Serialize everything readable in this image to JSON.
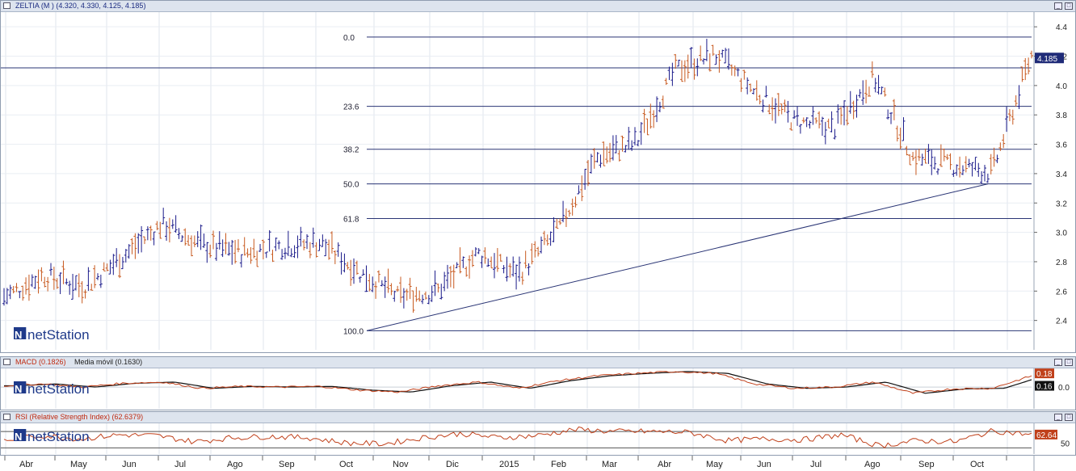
{
  "panes": {
    "price": {
      "symbol": "ZELTIA",
      "params": "(M ) (4.320, 4.330, 4.125, 4.185)"
    },
    "macd": {
      "indicator": "MACD (0.1826)",
      "signal": "Media móvil (0.1630)"
    },
    "rsi": {
      "indicator": "RSI (Relative Strength Index) (62.6379)"
    }
  },
  "watermark": "netStation",
  "buttons": {
    "minimize": "_",
    "maximize": "□"
  },
  "chart_data": [
    {
      "type": "bar",
      "subtype": "ohlc",
      "title": "ZELTIA",
      "ohlc_last": {
        "open": 4.32,
        "high": 4.33,
        "low": 4.125,
        "close": 4.185
      },
      "last_price_label": "4.185",
      "y_ticks": [
        "4.4",
        "4.2",
        "4.0",
        "3.8",
        "3.6",
        "3.4",
        "3.2",
        "3.0",
        "2.8",
        "2.6",
        "2.4"
      ],
      "ylim": [
        2.2,
        4.5
      ],
      "fibonacci": {
        "high": 4.33,
        "low": 2.33,
        "levels": [
          {
            "label": "0.0",
            "value": 4.33
          },
          {
            "label": "23.6",
            "value": 3.858
          },
          {
            "label": "38.2",
            "value": 3.566
          },
          {
            "label": "50.0",
            "value": 3.33
          },
          {
            "label": "61.8",
            "value": 3.094
          },
          {
            "label": "100.0",
            "value": 2.33
          }
        ]
      },
      "horizontal_line": 4.12,
      "trendline": {
        "from": {
          "x": "Oct 2014",
          "y": 2.33
        },
        "to": {
          "x": "Oct 2015",
          "y": 3.33
        }
      },
      "months": [
        "Abr",
        "May",
        "Jun",
        "Jul",
        "Ago",
        "Sep",
        "Oct",
        "Nov",
        "Dic",
        "2015",
        "Feb",
        "Mar",
        "Abr",
        "May",
        "Jun",
        "Jul",
        "Ago",
        "Sep",
        "Oct"
      ],
      "monthly_path": [
        2.55,
        2.7,
        2.62,
        2.82,
        3.05,
        2.9,
        2.85,
        2.9,
        2.92,
        2.72,
        2.55,
        2.6,
        2.85,
        2.7,
        3.0,
        3.5,
        3.6,
        4.1,
        4.2,
        3.95,
        3.75,
        3.7,
        4.05,
        3.5,
        3.45,
        3.4,
        4.2
      ],
      "colors": {
        "up": "#1a1a8a",
        "down": "#c85a20",
        "fib": "#2a3575"
      }
    },
    {
      "type": "line",
      "title": "MACD",
      "series": [
        {
          "name": "MACD",
          "last": 0.1826
        },
        {
          "name": "Media móvil",
          "last": 0.163
        }
      ],
      "labels": {
        "macd": "0.18",
        "signal": "0.16",
        "zero": "0.0"
      },
      "macd_path": [
        0.02,
        0.05,
        0.0,
        0.06,
        0.08,
        -0.02,
        0.01,
        0.0,
        0.01,
        -0.05,
        -0.08,
        0.02,
        0.08,
        -0.02,
        0.1,
        0.18,
        0.22,
        0.25,
        0.22,
        0.05,
        -0.02,
        0.0,
        0.08,
        -0.1,
        -0.03,
        -0.02,
        0.18
      ],
      "ylim": [
        -0.35,
        0.3
      ]
    },
    {
      "type": "line",
      "title": "RSI (Relative Strength Index)",
      "series": [
        {
          "name": "RSI",
          "last": 62.6379
        }
      ],
      "labels": {
        "last": "62.64",
        "tick": "50"
      },
      "bands": [
        30,
        70
      ],
      "rsi_path": [
        48,
        60,
        52,
        62,
        60,
        45,
        55,
        58,
        55,
        42,
        40,
        55,
        65,
        55,
        60,
        75,
        70,
        70,
        68,
        48,
        52,
        50,
        62,
        35,
        48,
        45,
        72,
        62
      ],
      "ylim": [
        15,
        90
      ]
    }
  ]
}
